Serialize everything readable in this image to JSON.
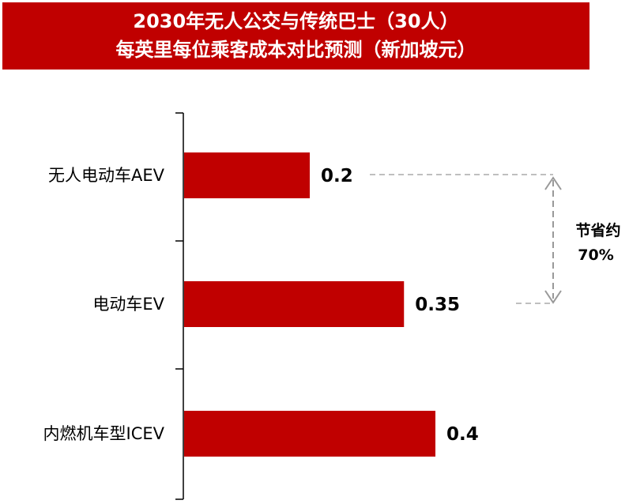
{
  "title": {
    "line1": "2030年无人公交与传统巴士（30人）",
    "line2": "每英里每位乘客成本对比预测（新加坡元）"
  },
  "chart_data": {
    "type": "bar",
    "orientation": "horizontal",
    "categories": [
      "无人电动车AEV",
      "电动车EV",
      "内燃机车型ICEV"
    ],
    "values": [
      0.2,
      0.35,
      0.4
    ],
    "value_labels": [
      "0.2",
      "0.35",
      "0.4"
    ],
    "bar_color": "#c00000",
    "xlim": [
      0,
      0.55
    ],
    "grid": false,
    "annotation": {
      "line1": "节省约",
      "line2": "70%"
    }
  }
}
